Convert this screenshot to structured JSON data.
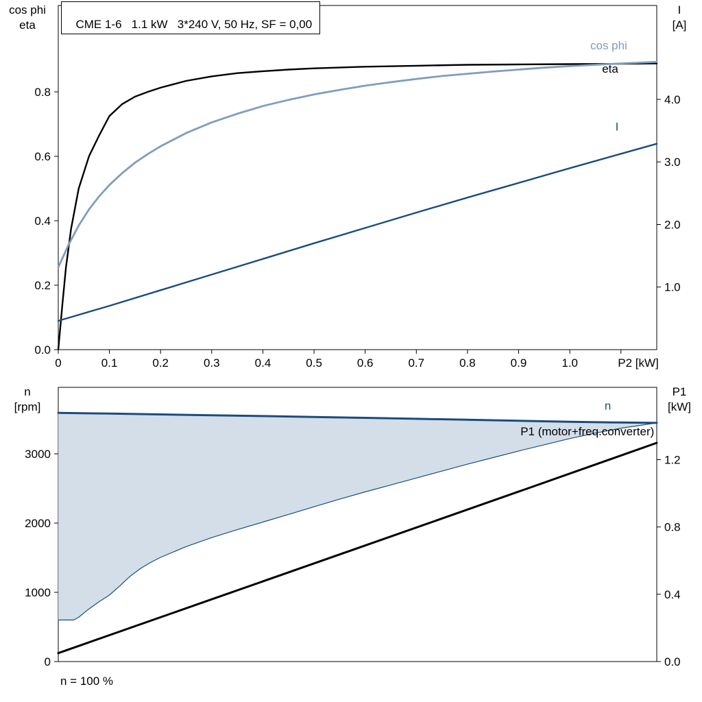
{
  "header": {
    "title": "CME 1-6   1.1 kW   3*240 V, 50 Hz, SF = 0,00"
  },
  "footer": {
    "note": "n = 100 %"
  },
  "colors": {
    "eta": "#000000",
    "cos_phi": "#7f9dbd",
    "current": "#1b4c7d",
    "speed": "#1b4c7d",
    "p1": "#000000",
    "speed_area_fill": "#ccd8e4"
  },
  "chart_data": [
    {
      "type": "line",
      "title": "CME 1-6   1.1 kW   3*240 V, 50 Hz, SF = 0,00",
      "grid": false,
      "x_axis": {
        "label": "P2 [kW]",
        "range": [
          0,
          1.17
        ],
        "ticks": [
          {
            "v": 0,
            "l": "0"
          },
          {
            "v": 0.1,
            "l": "0.1"
          },
          {
            "v": 0.2,
            "l": "0.2"
          },
          {
            "v": 0.3,
            "l": "0.3"
          },
          {
            "v": 0.4,
            "l": "0.4"
          },
          {
            "v": 0.5,
            "l": "0.5"
          },
          {
            "v": 0.6,
            "l": "0.6"
          },
          {
            "v": 0.7,
            "l": "0.7"
          },
          {
            "v": 0.8,
            "l": "0.8"
          },
          {
            "v": 0.9,
            "l": "0.9"
          },
          {
            "v": 1.0,
            "l": "1.0"
          },
          {
            "v": 1.1,
            "l": ""
          }
        ]
      },
      "y_left": {
        "title_lines": [
          "cos phi",
          "eta"
        ],
        "range": [
          0,
          1.068
        ],
        "ticks": [
          {
            "v": 0.0,
            "l": "0.0"
          },
          {
            "v": 0.2,
            "l": "0.2"
          },
          {
            "v": 0.4,
            "l": "0.4"
          },
          {
            "v": 0.6,
            "l": "0.6"
          },
          {
            "v": 0.8,
            "l": "0.8"
          }
        ]
      },
      "y_right": {
        "title_lines": [
          "I",
          "[A]"
        ],
        "range": [
          0,
          5.5
        ],
        "ticks": [
          {
            "v": 1.0,
            "l": "1.0"
          },
          {
            "v": 2.0,
            "l": "2.0"
          },
          {
            "v": 3.0,
            "l": "3.0"
          },
          {
            "v": 4.0,
            "l": "4.0"
          }
        ]
      },
      "series": [
        {
          "name": "eta",
          "axis": "left",
          "color": "#000000",
          "width": 2.4,
          "points": [
            [
              0,
              0
            ],
            [
              0.008,
              0.14
            ],
            [
              0.015,
              0.255
            ],
            [
              0.025,
              0.375
            ],
            [
              0.04,
              0.5
            ],
            [
              0.06,
              0.6
            ],
            [
              0.08,
              0.665
            ],
            [
              0.1,
              0.725
            ],
            [
              0.125,
              0.762
            ],
            [
              0.15,
              0.785
            ],
            [
              0.175,
              0.8
            ],
            [
              0.2,
              0.813
            ],
            [
              0.25,
              0.834
            ],
            [
              0.3,
              0.848
            ],
            [
              0.35,
              0.858
            ],
            [
              0.4,
              0.864
            ],
            [
              0.45,
              0.869
            ],
            [
              0.5,
              0.873
            ],
            [
              0.6,
              0.878
            ],
            [
              0.7,
              0.881
            ],
            [
              0.8,
              0.884
            ],
            [
              0.9,
              0.885
            ],
            [
              1.0,
              0.886
            ],
            [
              1.1,
              0.887
            ],
            [
              1.17,
              0.888
            ]
          ]
        },
        {
          "name": "cos phi",
          "axis": "left",
          "color": "#7f9dbd",
          "width": 2.8,
          "points": [
            [
              0,
              0.255
            ],
            [
              0.02,
              0.325
            ],
            [
              0.04,
              0.385
            ],
            [
              0.06,
              0.435
            ],
            [
              0.08,
              0.476
            ],
            [
              0.1,
              0.511
            ],
            [
              0.125,
              0.548
            ],
            [
              0.15,
              0.58
            ],
            [
              0.175,
              0.607
            ],
            [
              0.2,
              0.631
            ],
            [
              0.25,
              0.672
            ],
            [
              0.3,
              0.705
            ],
            [
              0.35,
              0.732
            ],
            [
              0.4,
              0.756
            ],
            [
              0.45,
              0.775
            ],
            [
              0.5,
              0.792
            ],
            [
              0.55,
              0.806
            ],
            [
              0.6,
              0.819
            ],
            [
              0.65,
              0.83
            ],
            [
              0.7,
              0.84
            ],
            [
              0.75,
              0.849
            ],
            [
              0.8,
              0.856
            ],
            [
              0.85,
              0.863
            ],
            [
              0.9,
              0.869
            ],
            [
              0.95,
              0.875
            ],
            [
              1.0,
              0.88
            ],
            [
              1.05,
              0.884
            ],
            [
              1.1,
              0.888
            ],
            [
              1.17,
              0.893
            ]
          ]
        },
        {
          "name": "I",
          "axis": "right",
          "color": "#1b4c7d",
          "width": 2.4,
          "points": [
            [
              0,
              0.46
            ],
            [
              0.1,
              0.7
            ],
            [
              0.2,
              0.95
            ],
            [
              0.3,
              1.2
            ],
            [
              0.4,
              1.45
            ],
            [
              0.5,
              1.7
            ],
            [
              0.6,
              1.945
            ],
            [
              0.7,
              2.19
            ],
            [
              0.8,
              2.43
            ],
            [
              0.9,
              2.665
            ],
            [
              1.0,
              2.9
            ],
            [
              1.1,
              3.13
            ],
            [
              1.17,
              3.29
            ]
          ]
        }
      ],
      "labels": [
        {
          "text": "cos phi",
          "x": 1.04,
          "y": 0.932,
          "axis": "left",
          "color": "#7f9dbd"
        },
        {
          "text": "eta",
          "x": 1.063,
          "y": 0.859,
          "axis": "left",
          "color": "#000000"
        },
        {
          "text": "I",
          "x": 1.089,
          "y": 3.5,
          "axis": "right",
          "color": "#1b4c7d"
        }
      ]
    },
    {
      "type": "line",
      "title": "",
      "grid": false,
      "x_axis": {
        "label": "",
        "range": [
          0,
          1.17
        ],
        "ticks": []
      },
      "y_left": {
        "title_lines": [
          "n",
          "[rpm]"
        ],
        "range": [
          0,
          3960
        ],
        "ticks": [
          {
            "v": 0,
            "l": "0"
          },
          {
            "v": 1000,
            "l": "1000"
          },
          {
            "v": 2000,
            "l": "2000"
          },
          {
            "v": 3000,
            "l": "3000"
          }
        ]
      },
      "y_right": {
        "title_lines": [
          "P1",
          "[kW]"
        ],
        "range": [
          0,
          1.63
        ],
        "ticks": [
          {
            "v": 0.0,
            "l": "0.0"
          },
          {
            "v": 0.4,
            "l": "0.4"
          },
          {
            "v": 0.8,
            "l": "0.8"
          },
          {
            "v": 1.2,
            "l": "1.2"
          }
        ]
      },
      "area": {
        "lower": "n min",
        "upper": "n",
        "fill": "#ccd8e4",
        "opacity": 0.85
      },
      "series": [
        {
          "name": "n min",
          "axis": "left",
          "color": "#1b4c7d",
          "width": 1.2,
          "points": [
            [
              0,
              600
            ],
            [
              0.03,
              600
            ],
            [
              0.04,
              640
            ],
            [
              0.06,
              760
            ],
            [
              0.08,
              865
            ],
            [
              0.1,
              960
            ],
            [
              0.12,
              1090
            ],
            [
              0.14,
              1230
            ],
            [
              0.16,
              1340
            ],
            [
              0.18,
              1430
            ],
            [
              0.2,
              1505
            ],
            [
              0.25,
              1660
            ],
            [
              0.3,
              1790
            ],
            [
              0.35,
              1905
            ],
            [
              0.4,
              2015
            ],
            [
              0.45,
              2125
            ],
            [
              0.5,
              2235
            ],
            [
              0.55,
              2345
            ],
            [
              0.6,
              2450
            ],
            [
              0.65,
              2550
            ],
            [
              0.7,
              2650
            ],
            [
              0.75,
              2750
            ],
            [
              0.8,
              2850
            ],
            [
              0.85,
              2945
            ],
            [
              0.9,
              3040
            ],
            [
              0.95,
              3130
            ],
            [
              1.0,
              3220
            ],
            [
              1.05,
              3300
            ],
            [
              1.1,
              3370
            ],
            [
              1.17,
              3446
            ]
          ]
        },
        {
          "name": "n",
          "axis": "left",
          "color": "#1b4c7d",
          "width": 3,
          "points": [
            [
              0,
              3592
            ],
            [
              0.1,
              3581
            ],
            [
              0.2,
              3569
            ],
            [
              0.3,
              3557
            ],
            [
              0.4,
              3545
            ],
            [
              0.5,
              3532
            ],
            [
              0.6,
              3519
            ],
            [
              0.7,
              3506
            ],
            [
              0.8,
              3492
            ],
            [
              0.9,
              3477
            ],
            [
              1.0,
              3462
            ],
            [
              1.1,
              3452
            ],
            [
              1.17,
              3446
            ]
          ]
        },
        {
          "name": "P1 (motor+freq.converter)",
          "axis": "right",
          "color": "#000000",
          "width": 3,
          "points": [
            [
              0,
              0.05
            ],
            [
              0.3,
              0.37
            ],
            [
              0.6,
              0.69
            ],
            [
              0.9,
              1.01
            ],
            [
              1.17,
              1.3
            ]
          ]
        }
      ],
      "labels": [
        {
          "text": "n",
          "x": 1.068,
          "y": 3640,
          "axis": "left",
          "color": "#1b4c7d"
        },
        {
          "text": "P1 (motor+freq.converter)",
          "x": 1.165,
          "y": 1.345,
          "axis": "right",
          "color": "#000000",
          "anchor": "end"
        }
      ]
    }
  ]
}
